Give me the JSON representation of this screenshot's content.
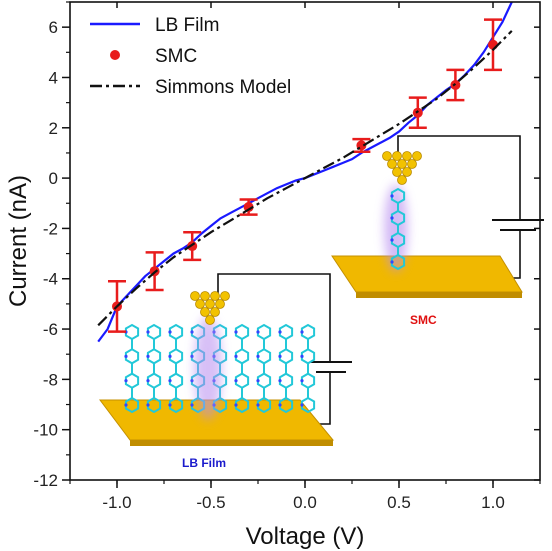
{
  "chart_data": {
    "type": "line",
    "xlabel": "Voltage (V)",
    "ylabel": "Current (nA)",
    "xlim": [
      -1.25,
      1.25
    ],
    "ylim": [
      -12,
      7
    ],
    "xticks": [
      -1.0,
      -0.5,
      0.0,
      0.5,
      1.0
    ],
    "xtick_labels": [
      "-1.0",
      "-0.5",
      "0.0",
      "0.5",
      "1.0"
    ],
    "yticks": [
      -12,
      -10,
      -8,
      -6,
      -4,
      -2,
      0,
      2,
      4,
      6
    ],
    "ytick_labels": [
      "-12",
      "-10",
      "-8",
      "-6",
      "-4",
      "-2",
      "0",
      "2",
      "4",
      "6"
    ],
    "grid": false,
    "legend_position": "top-left",
    "series": [
      {
        "name": "LB Film",
        "style": "solid-line",
        "color": "#1a1aff",
        "x": [
          -1.1,
          -1.05,
          -1.0,
          -0.95,
          -0.9,
          -0.85,
          -0.8,
          -0.75,
          -0.7,
          -0.65,
          -0.6,
          -0.55,
          -0.5,
          -0.45,
          -0.4,
          -0.35,
          -0.3,
          -0.25,
          -0.2,
          -0.15,
          -0.1,
          -0.05,
          0.0,
          0.05,
          0.1,
          0.15,
          0.2,
          0.25,
          0.3,
          0.35,
          0.4,
          0.45,
          0.5,
          0.55,
          0.6,
          0.65,
          0.7,
          0.75,
          0.8,
          0.85,
          0.9,
          0.95,
          1.0,
          1.05,
          1.1
        ],
        "y": [
          -6.5,
          -6.0,
          -5.1,
          -4.7,
          -4.3,
          -3.9,
          -3.6,
          -3.3,
          -3.0,
          -2.8,
          -2.55,
          -2.2,
          -1.9,
          -1.6,
          -1.4,
          -1.2,
          -1.0,
          -0.8,
          -0.6,
          -0.4,
          -0.25,
          -0.1,
          0.0,
          0.15,
          0.3,
          0.45,
          0.6,
          0.75,
          1.0,
          1.2,
          1.4,
          1.6,
          1.85,
          2.2,
          2.5,
          2.9,
          3.2,
          3.5,
          3.75,
          4.1,
          4.5,
          5.0,
          5.6,
          6.2,
          7.0
        ]
      },
      {
        "name": "SMC",
        "style": "markers-with-error-bars",
        "color": "#e81c1c",
        "x": [
          -1.0,
          -0.8,
          -0.6,
          -0.3,
          0.3,
          0.6,
          0.8,
          1.0
        ],
        "y": [
          -5.1,
          -3.7,
          -2.7,
          -1.15,
          1.3,
          2.6,
          3.7,
          5.3
        ],
        "error": [
          1.0,
          0.75,
          0.55,
          0.3,
          0.25,
          0.6,
          0.6,
          1.0
        ]
      },
      {
        "name": "Simmons Model",
        "style": "dash-dot-line",
        "color": "#111111",
        "x": [
          -1.1,
          -1.0,
          -0.9,
          -0.8,
          -0.7,
          -0.6,
          -0.5,
          -0.4,
          -0.3,
          -0.2,
          -0.1,
          0.0,
          0.1,
          0.2,
          0.3,
          0.4,
          0.5,
          0.6,
          0.7,
          0.8,
          0.9,
          1.0,
          1.1
        ],
        "y": [
          -5.85,
          -5.1,
          -4.4,
          -3.75,
          -3.15,
          -2.65,
          -2.15,
          -1.7,
          -1.25,
          -0.8,
          -0.4,
          0.0,
          0.4,
          0.8,
          1.25,
          1.7,
          2.15,
          2.65,
          3.15,
          3.75,
          4.4,
          5.1,
          5.85
        ]
      }
    ]
  },
  "insets": {
    "lb_film_label": "LB Film",
    "smc_label": "SMC",
    "lb_label_color": "#1a1acc",
    "smc_label_color": "#e01010",
    "gold_color": "#f0b800",
    "molecule_color": "#22c8d8",
    "glow_color": "#b78cf0"
  }
}
